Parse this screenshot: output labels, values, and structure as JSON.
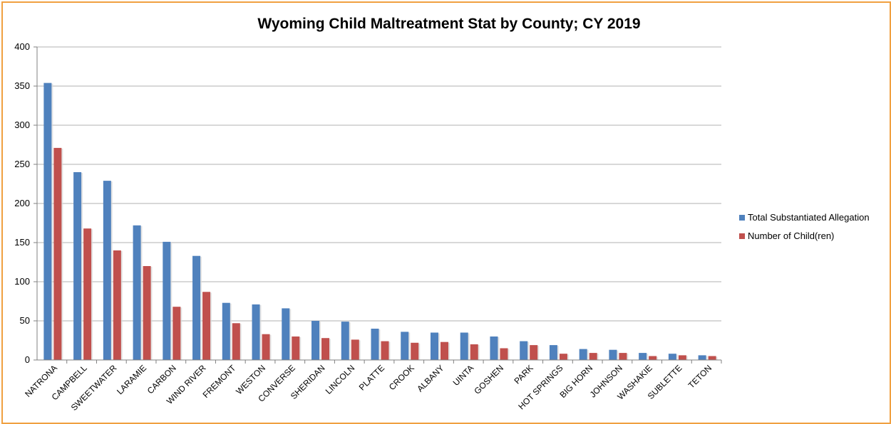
{
  "chart_data": {
    "type": "bar",
    "title": "Wyoming Child Maltreatment Stat by County; CY 2019",
    "xlabel": "",
    "ylabel": "",
    "ylim": [
      0,
      400
    ],
    "yticks": [
      0,
      50,
      100,
      150,
      200,
      250,
      300,
      350,
      400
    ],
    "grid": true,
    "legend_position": "right",
    "categories": [
      "NATRONA",
      "CAMPBELL",
      "SWEETWATER",
      "LARAMIE",
      "CARBON",
      "WIND RIVER",
      "FREMONT",
      "WESTON",
      "CONVERSE",
      "SHERIDAN",
      "LINCOLN",
      "PLATTE",
      "CROOK",
      "ALBANY",
      "UINTA",
      "GOSHEN",
      "PARK",
      "HOT SPRINGS",
      "BIG HORN",
      "JOHNSON",
      "WASHAKIE",
      "SUBLETTE",
      "TETON"
    ],
    "series": [
      {
        "name": "Total Substantiated Allegation",
        "color": "#4f81bd",
        "values": [
          354,
          240,
          229,
          172,
          151,
          133,
          73,
          71,
          66,
          50,
          49,
          40,
          36,
          35,
          35,
          30,
          24,
          19,
          14,
          13,
          9,
          8,
          6
        ]
      },
      {
        "name": "Number of Child(ren)",
        "color": "#c0504d",
        "values": [
          271,
          168,
          140,
          120,
          68,
          87,
          47,
          33,
          30,
          28,
          26,
          24,
          22,
          23,
          20,
          15,
          19,
          8,
          9,
          9,
          5,
          6,
          5
        ]
      }
    ]
  },
  "frame_color": "#f0a040"
}
